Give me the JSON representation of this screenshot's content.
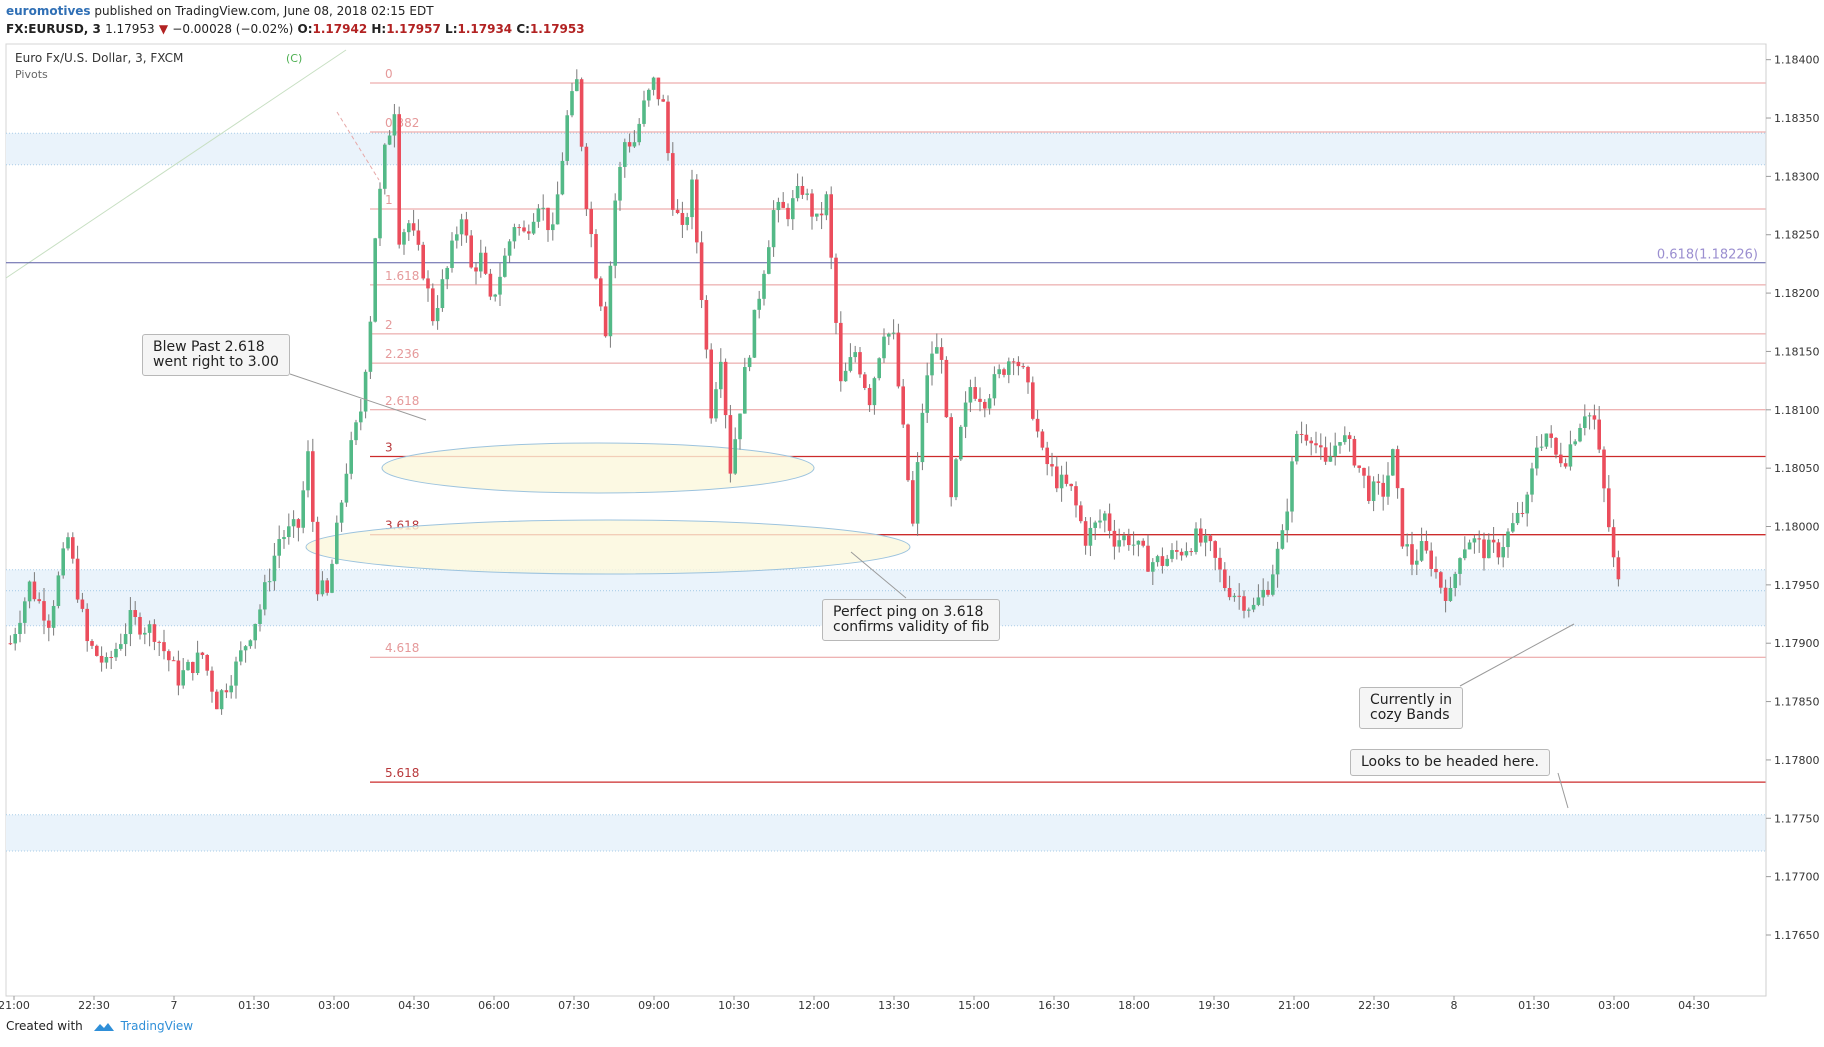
{
  "header": {
    "author": "euromotives",
    "published_text": " published on TradingView.com, June 08, 2018 02:15 EDT",
    "symbol": "FX:EURUSD, 3",
    "price": "1.17953",
    "change": "−0.00028 (−0.02%)",
    "o_label": "O:",
    "o_value": "1.17942",
    "h_label": "H:",
    "h_value": "1.17957",
    "l_label": "L:",
    "l_value": "1.17934",
    "c_label": "C:",
    "c_value": "1.17953"
  },
  "legend": {
    "title": "Euro Fx/U.S. Dollar, 3, FXCM",
    "indicator": "Pivots"
  },
  "footer": {
    "created_with": "Created with",
    "brand": "TradingView"
  },
  "colors": {
    "up": "#53b987",
    "down": "#eb4d5c",
    "fib_light": "#e89a9a",
    "fib_dark": "#cc2b2b",
    "pivot_line": "#5b5ea6",
    "band": "#eaf3fb",
    "ellipse_fill": "#fbf7dc",
    "ellipse_stroke": "#9cc3de"
  },
  "callouts": [
    {
      "id": "blew-past",
      "text": "Blew Past 2.618\nwent right to 3.00"
    },
    {
      "id": "perfect-ping",
      "text": "Perfect ping on 3.618\nconfirms validity of fib"
    },
    {
      "id": "cozy-bands",
      "text": "Currently in\ncozy Bands"
    },
    {
      "id": "headed-here",
      "text": "Looks to be headed here."
    }
  ],
  "chart_data": {
    "type": "candlestick",
    "title": "Euro Fx/U.S. Dollar, 3, FXCM",
    "ylim": [
      1.1762,
      1.1841
    ],
    "y_ticks": [
      "1.18400",
      "1.18350",
      "1.18300",
      "1.18250",
      "1.18200",
      "1.18150",
      "1.18100",
      "1.18050",
      "1.18000",
      "1.17950",
      "1.17900",
      "1.17850",
      "1.17800",
      "1.17750",
      "1.17700",
      "1.17650"
    ],
    "x_ticks": [
      "21:00",
      "22:30",
      "7",
      "01:30",
      "03:00",
      "04:30",
      "06:00",
      "07:30",
      "09:00",
      "10:30",
      "12:00",
      "13:30",
      "15:00",
      "16:30",
      "18:00",
      "19:30",
      "21:00",
      "22:30",
      "8",
      "01:30",
      "03:00",
      "04:30"
    ],
    "price_path": [
      [
        0,
        1.179
      ],
      [
        4,
        1.1795
      ],
      [
        8,
        1.1792
      ],
      [
        12,
        1.1799
      ],
      [
        16,
        1.179
      ],
      [
        20,
        1.1788
      ],
      [
        25,
        1.1792
      ],
      [
        30,
        1.1791
      ],
      [
        35,
        1.1787
      ],
      [
        40,
        1.1789
      ],
      [
        43,
        1.1785
      ],
      [
        47,
        1.1788
      ],
      [
        52,
        1.1793
      ],
      [
        56,
        1.1799
      ],
      [
        60,
        1.18
      ],
      [
        62,
        1.1806
      ],
      [
        64,
        1.1795
      ],
      [
        66,
        1.1794
      ],
      [
        70,
        1.1805
      ],
      [
        73,
        1.181
      ],
      [
        75,
        1.1818
      ],
      [
        76,
        1.1825
      ],
      [
        78,
        1.1832
      ],
      [
        80,
        1.1836
      ],
      [
        81,
        1.1825
      ],
      [
        83,
        1.1826
      ],
      [
        86,
        1.1822
      ],
      [
        88,
        1.1818
      ],
      [
        91,
        1.1822
      ],
      [
        94,
        1.1827
      ],
      [
        96,
        1.1822
      ],
      [
        98,
        1.1823
      ],
      [
        100,
        1.1819
      ],
      [
        103,
        1.1823
      ],
      [
        105,
        1.1826
      ],
      [
        107,
        1.1825
      ],
      [
        110,
        1.1828
      ],
      [
        113,
        1.1825
      ],
      [
        116,
        1.1835
      ],
      [
        118,
        1.1838
      ],
      [
        120,
        1.1828
      ],
      [
        122,
        1.1822
      ],
      [
        124,
        1.1817
      ],
      [
        126,
        1.1828
      ],
      [
        128,
        1.1833
      ],
      [
        130,
        1.1833
      ],
      [
        132,
        1.1836
      ],
      [
        134,
        1.1838
      ],
      [
        136,
        1.1836
      ],
      [
        138,
        1.1828
      ],
      [
        140,
        1.1825
      ],
      [
        142,
        1.1829
      ],
      [
        144,
        1.182
      ],
      [
        146,
        1.181
      ],
      [
        148,
        1.1815
      ],
      [
        150,
        1.1805
      ],
      [
        153,
        1.1813
      ],
      [
        156,
        1.182
      ],
      [
        159,
        1.1827
      ],
      [
        162,
        1.1827
      ],
      [
        165,
        1.1829
      ],
      [
        168,
        1.1826
      ],
      [
        170,
        1.1828
      ],
      [
        173,
        1.1812
      ],
      [
        176,
        1.1815
      ],
      [
        179,
        1.1811
      ],
      [
        182,
        1.1817
      ],
      [
        184,
        1.1816
      ],
      [
        186,
        1.1808
      ],
      [
        188,
        1.18
      ],
      [
        190,
        1.181
      ],
      [
        192,
        1.1815
      ],
      [
        194,
        1.1815
      ],
      [
        196,
        1.1802
      ],
      [
        198,
        1.1808
      ],
      [
        200,
        1.1812
      ],
      [
        203,
        1.1811
      ],
      [
        206,
        1.1813
      ],
      [
        209,
        1.1815
      ],
      [
        211,
        1.1813
      ],
      [
        213,
        1.181
      ],
      [
        215,
        1.1806
      ],
      [
        218,
        1.1804
      ],
      [
        221,
        1.1803
      ],
      [
        224,
        1.1799
      ],
      [
        228,
        1.1801
      ],
      [
        230,
        1.1799
      ],
      [
        233,
        1.1799
      ],
      [
        237,
        1.1797
      ],
      [
        240,
        1.1797
      ],
      [
        244,
        1.1798
      ],
      [
        247,
        1.1799
      ],
      [
        250,
        1.1798
      ],
      [
        253,
        1.1795
      ],
      [
        256,
        1.1794
      ],
      [
        259,
        1.1793
      ],
      [
        262,
        1.1795
      ],
      [
        265,
        1.1799
      ],
      [
        268,
        1.1808
      ],
      [
        271,
        1.1808
      ],
      [
        274,
        1.1805
      ],
      [
        277,
        1.1808
      ],
      [
        280,
        1.1806
      ],
      [
        283,
        1.1803
      ],
      [
        286,
        1.1803
      ],
      [
        288,
        1.1806
      ],
      [
        290,
        1.1799
      ],
      [
        292,
        1.1797
      ],
      [
        294,
        1.1798
      ],
      [
        296,
        1.1797
      ],
      [
        298,
        1.1795
      ],
      [
        300,
        1.1794
      ],
      [
        302,
        1.1798
      ],
      [
        304,
        1.1799
      ],
      [
        307,
        1.1798
      ],
      [
        310,
        1.1798
      ],
      [
        313,
        1.18
      ],
      [
        316,
        1.1802
      ],
      [
        318,
        1.1807
      ],
      [
        320,
        1.1808
      ],
      [
        322,
        1.1806
      ],
      [
        324,
        1.1806
      ],
      [
        326,
        1.1808
      ],
      [
        328,
        1.181
      ],
      [
        330,
        1.1809
      ],
      [
        332,
        1.1803
      ],
      [
        334,
        1.1797
      ],
      [
        335,
        1.1795
      ]
    ],
    "horizontal_levels": [
      {
        "label": "0",
        "value": 1.1838,
        "style": "light"
      },
      {
        "label": "0.382",
        "value": 1.18338,
        "style": "light"
      },
      {
        "label": "1",
        "value": 1.18272,
        "style": "light"
      },
      {
        "label": "1.618",
        "value": 1.18207,
        "style": "light"
      },
      {
        "label": "2",
        "value": 1.18165,
        "style": "light"
      },
      {
        "label": "2.236",
        "value": 1.1814,
        "style": "light"
      },
      {
        "label": "2.618",
        "value": 1.181,
        "style": "light"
      },
      {
        "label": "3",
        "value": 1.1806,
        "style": "dark"
      },
      {
        "label": "3.618",
        "value": 1.17993,
        "style": "dark"
      },
      {
        "label": "4.618",
        "value": 1.17888,
        "style": "light"
      },
      {
        "label": "5.618",
        "value": 1.17781,
        "style": "dark"
      }
    ],
    "pivot_level": {
      "label": "0.618(1.18226)",
      "value": 1.18226
    },
    "pattern_point_label": "(C)",
    "bands": [
      {
        "from": 1.1831,
        "to": 1.18337
      },
      {
        "from": 1.17945,
        "to": 1.17963
      },
      {
        "from": 1.17915,
        "to": 1.17945
      },
      {
        "from": 1.17722,
        "to": 1.17753
      }
    ]
  }
}
